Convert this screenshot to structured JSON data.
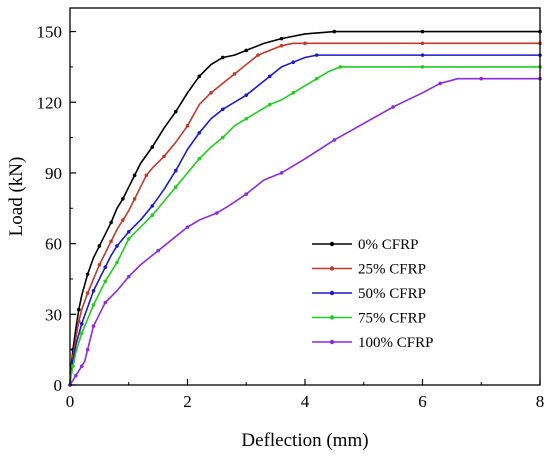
{
  "chart_data": {
    "type": "line",
    "xlabel": "Deflection (mm)",
    "ylabel": "Load (kN)",
    "xlim": [
      0,
      8
    ],
    "ylim": [
      0,
      160
    ],
    "xticks": [
      0,
      2,
      4,
      6,
      8
    ],
    "yticks": [
      0,
      30,
      60,
      90,
      120,
      150
    ],
    "grid": false,
    "legend_position": "bottom-right",
    "series": [
      {
        "name": "0% CFRP",
        "color": "#000000",
        "points": [
          [
            0,
            0
          ],
          [
            0.02,
            8
          ],
          [
            0.05,
            15
          ],
          [
            0.1,
            24
          ],
          [
            0.15,
            32
          ],
          [
            0.2,
            38
          ],
          [
            0.3,
            47
          ],
          [
            0.4,
            54
          ],
          [
            0.5,
            59
          ],
          [
            0.6,
            64
          ],
          [
            0.7,
            69
          ],
          [
            0.8,
            75
          ],
          [
            0.9,
            79
          ],
          [
            1.0,
            84
          ],
          [
            1.1,
            89
          ],
          [
            1.2,
            94
          ],
          [
            1.4,
            101
          ],
          [
            1.6,
            109
          ],
          [
            1.8,
            116
          ],
          [
            2.0,
            124
          ],
          [
            2.2,
            131
          ],
          [
            2.4,
            136
          ],
          [
            2.6,
            139
          ],
          [
            2.8,
            140
          ],
          [
            3.0,
            142
          ],
          [
            3.3,
            145
          ],
          [
            3.6,
            147
          ],
          [
            4.0,
            149
          ],
          [
            4.5,
            150
          ],
          [
            5.0,
            150
          ],
          [
            6.0,
            150
          ],
          [
            7.0,
            150
          ],
          [
            8.0,
            150
          ]
        ]
      },
      {
        "name": "25% CFRP",
        "color": "#c0392b",
        "points": [
          [
            0,
            0
          ],
          [
            0.02,
            6
          ],
          [
            0.05,
            12
          ],
          [
            0.1,
            20
          ],
          [
            0.15,
            27
          ],
          [
            0.2,
            32
          ],
          [
            0.3,
            39
          ],
          [
            0.4,
            45
          ],
          [
            0.5,
            51
          ],
          [
            0.6,
            56
          ],
          [
            0.7,
            61
          ],
          [
            0.8,
            66
          ],
          [
            0.9,
            70
          ],
          [
            1.0,
            74
          ],
          [
            1.1,
            79
          ],
          [
            1.2,
            84
          ],
          [
            1.3,
            89
          ],
          [
            1.4,
            92
          ],
          [
            1.6,
            97
          ],
          [
            1.8,
            103
          ],
          [
            2.0,
            110
          ],
          [
            2.2,
            119
          ],
          [
            2.4,
            124
          ],
          [
            2.6,
            128
          ],
          [
            2.8,
            132
          ],
          [
            3.0,
            136
          ],
          [
            3.2,
            140
          ],
          [
            3.4,
            142
          ],
          [
            3.6,
            144
          ],
          [
            3.8,
            145
          ],
          [
            4.0,
            145
          ],
          [
            5.0,
            145
          ],
          [
            6.0,
            145
          ],
          [
            7.0,
            145
          ],
          [
            8.0,
            145
          ]
        ]
      },
      {
        "name": "50% CFRP",
        "color": "#1a1acc",
        "points": [
          [
            0,
            0
          ],
          [
            0.02,
            5
          ],
          [
            0.05,
            10
          ],
          [
            0.1,
            17
          ],
          [
            0.2,
            26
          ],
          [
            0.3,
            33
          ],
          [
            0.4,
            40
          ],
          [
            0.5,
            45
          ],
          [
            0.6,
            50
          ],
          [
            0.7,
            55
          ],
          [
            0.8,
            59
          ],
          [
            0.9,
            62
          ],
          [
            1.0,
            65
          ],
          [
            1.2,
            70
          ],
          [
            1.4,
            76
          ],
          [
            1.6,
            83
          ],
          [
            1.8,
            91
          ],
          [
            2.0,
            100
          ],
          [
            2.2,
            107
          ],
          [
            2.4,
            113
          ],
          [
            2.6,
            117
          ],
          [
            2.8,
            120
          ],
          [
            3.0,
            123
          ],
          [
            3.2,
            127
          ],
          [
            3.4,
            131
          ],
          [
            3.6,
            135
          ],
          [
            3.8,
            137
          ],
          [
            4.0,
            139
          ],
          [
            4.2,
            140
          ],
          [
            5.0,
            140
          ],
          [
            6.0,
            140
          ],
          [
            7.0,
            140
          ],
          [
            8.0,
            140
          ]
        ]
      },
      {
        "name": "75% CFRP",
        "color": "#22cc22",
        "points": [
          [
            0,
            0
          ],
          [
            0.02,
            4
          ],
          [
            0.05,
            8
          ],
          [
            0.1,
            14
          ],
          [
            0.2,
            22
          ],
          [
            0.3,
            28
          ],
          [
            0.4,
            34
          ],
          [
            0.5,
            39
          ],
          [
            0.6,
            44
          ],
          [
            0.7,
            48
          ],
          [
            0.8,
            52
          ],
          [
            0.9,
            57
          ],
          [
            1.0,
            62
          ],
          [
            1.2,
            67
          ],
          [
            1.4,
            72
          ],
          [
            1.6,
            78
          ],
          [
            1.8,
            84
          ],
          [
            2.0,
            90
          ],
          [
            2.2,
            96
          ],
          [
            2.4,
            101
          ],
          [
            2.6,
            105
          ],
          [
            2.8,
            110
          ],
          [
            3.0,
            113
          ],
          [
            3.2,
            116
          ],
          [
            3.4,
            119
          ],
          [
            3.6,
            121
          ],
          [
            3.8,
            124
          ],
          [
            4.0,
            127
          ],
          [
            4.2,
            130
          ],
          [
            4.4,
            133
          ],
          [
            4.6,
            135
          ],
          [
            5.0,
            135
          ],
          [
            6.0,
            135
          ],
          [
            7.0,
            135
          ],
          [
            8.0,
            135
          ]
        ]
      },
      {
        "name": "100% CFRP",
        "color": "#8a2be2",
        "points": [
          [
            0,
            0
          ],
          [
            0.05,
            2
          ],
          [
            0.1,
            4
          ],
          [
            0.15,
            6
          ],
          [
            0.2,
            8
          ],
          [
            0.25,
            10
          ],
          [
            0.3,
            15
          ],
          [
            0.35,
            20
          ],
          [
            0.4,
            25
          ],
          [
            0.5,
            30
          ],
          [
            0.6,
            35
          ],
          [
            0.8,
            40
          ],
          [
            1.0,
            46
          ],
          [
            1.2,
            51
          ],
          [
            1.5,
            57
          ],
          [
            1.8,
            63
          ],
          [
            2.0,
            67
          ],
          [
            2.2,
            70
          ],
          [
            2.5,
            73
          ],
          [
            2.7,
            76
          ],
          [
            3.0,
            81
          ],
          [
            3.3,
            87
          ],
          [
            3.6,
            90
          ],
          [
            4.0,
            96
          ],
          [
            4.5,
            104
          ],
          [
            5.0,
            111
          ],
          [
            5.5,
            118
          ],
          [
            6.0,
            124
          ],
          [
            6.3,
            128
          ],
          [
            6.6,
            130
          ],
          [
            7.0,
            130
          ],
          [
            7.5,
            130
          ],
          [
            8.0,
            130
          ]
        ]
      }
    ]
  }
}
